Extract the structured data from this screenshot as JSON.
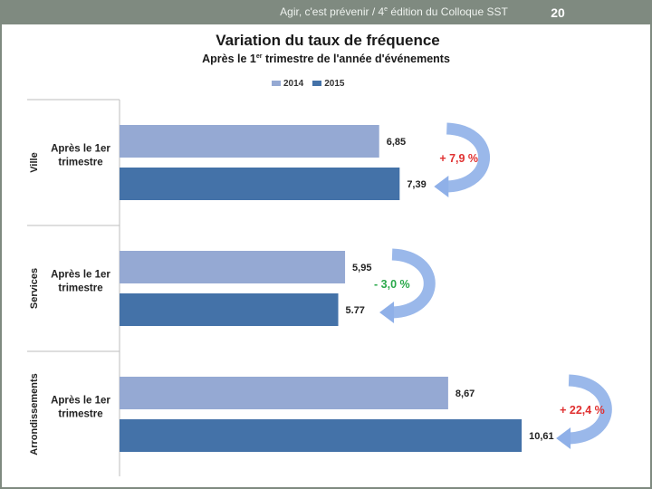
{
  "header": {
    "text_before": "Agir, c'est prévenir / 4",
    "text_sup": "e",
    "text_after": " édition du Colloque SST",
    "page_number": "20"
  },
  "chart_data": {
    "type": "bar",
    "orientation": "horizontal",
    "title": "Variation du taux de fréquence",
    "subtitle_before": "Après le 1",
    "subtitle_sup": "er",
    "subtitle_after": " trimestre de l'année d'événements",
    "legend_position": "top",
    "series": [
      {
        "name": "2014",
        "color": "#95a9d3"
      },
      {
        "name": "2015",
        "color": "#4472a8"
      }
    ],
    "groups": [
      {
        "name": "Ville",
        "category": "Après le 1er trimestre",
        "values": [
          6.85,
          7.39
        ],
        "labels": [
          "6,85",
          "7,39"
        ],
        "change": "+ 7,9 %",
        "change_color": "#e03030"
      },
      {
        "name": "Services",
        "category": "Après le 1er trimestre",
        "values": [
          5.95,
          5.77
        ],
        "labels": [
          "5,95",
          "5.77"
        ],
        "change": "- 3,0 %",
        "change_color": "#2aa84a"
      },
      {
        "name": "Arrondissements",
        "category": "Après le 1er trimestre",
        "values": [
          8.67,
          10.61
        ],
        "labels": [
          "8,67",
          "10,61"
        ],
        "change": "+ 22,4 %",
        "change_color": "#e03030"
      }
    ],
    "xlim": [
      0,
      11
    ],
    "grid": false
  }
}
